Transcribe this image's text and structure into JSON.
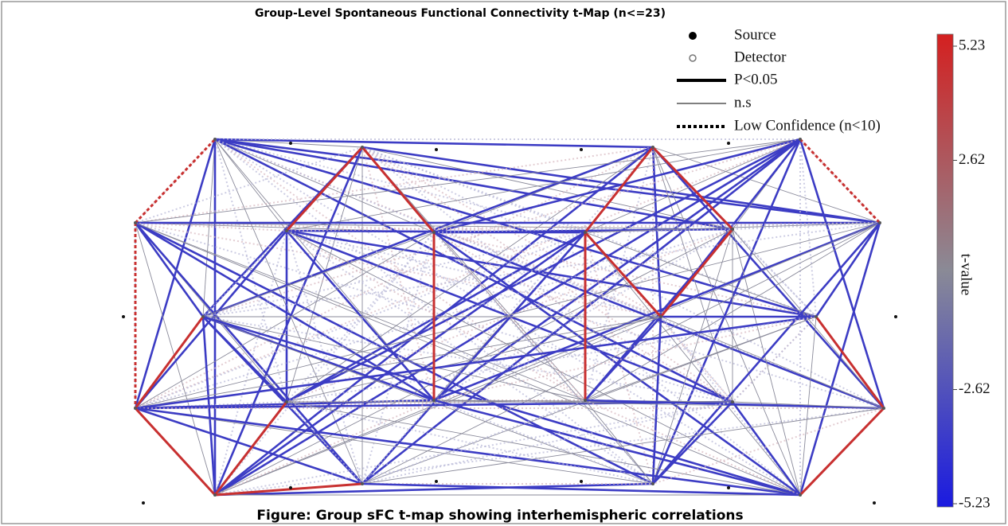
{
  "header": {
    "title": "Group-Level Spontaneous Functional Connectivity t-Map (n<=23)"
  },
  "legend": {
    "items": [
      "Source",
      "Detector",
      "P<0.05",
      "n.s",
      "Low Confidence (n<10)"
    ]
  },
  "colorbar": {
    "label": "t-value",
    "range": [
      -5.23,
      5.23
    ],
    "ticks": [
      5.23,
      2.62,
      -2.62,
      -5.23
    ]
  },
  "caption": "Figure: Group sFC t-map showing interhemispheric correlations"
}
